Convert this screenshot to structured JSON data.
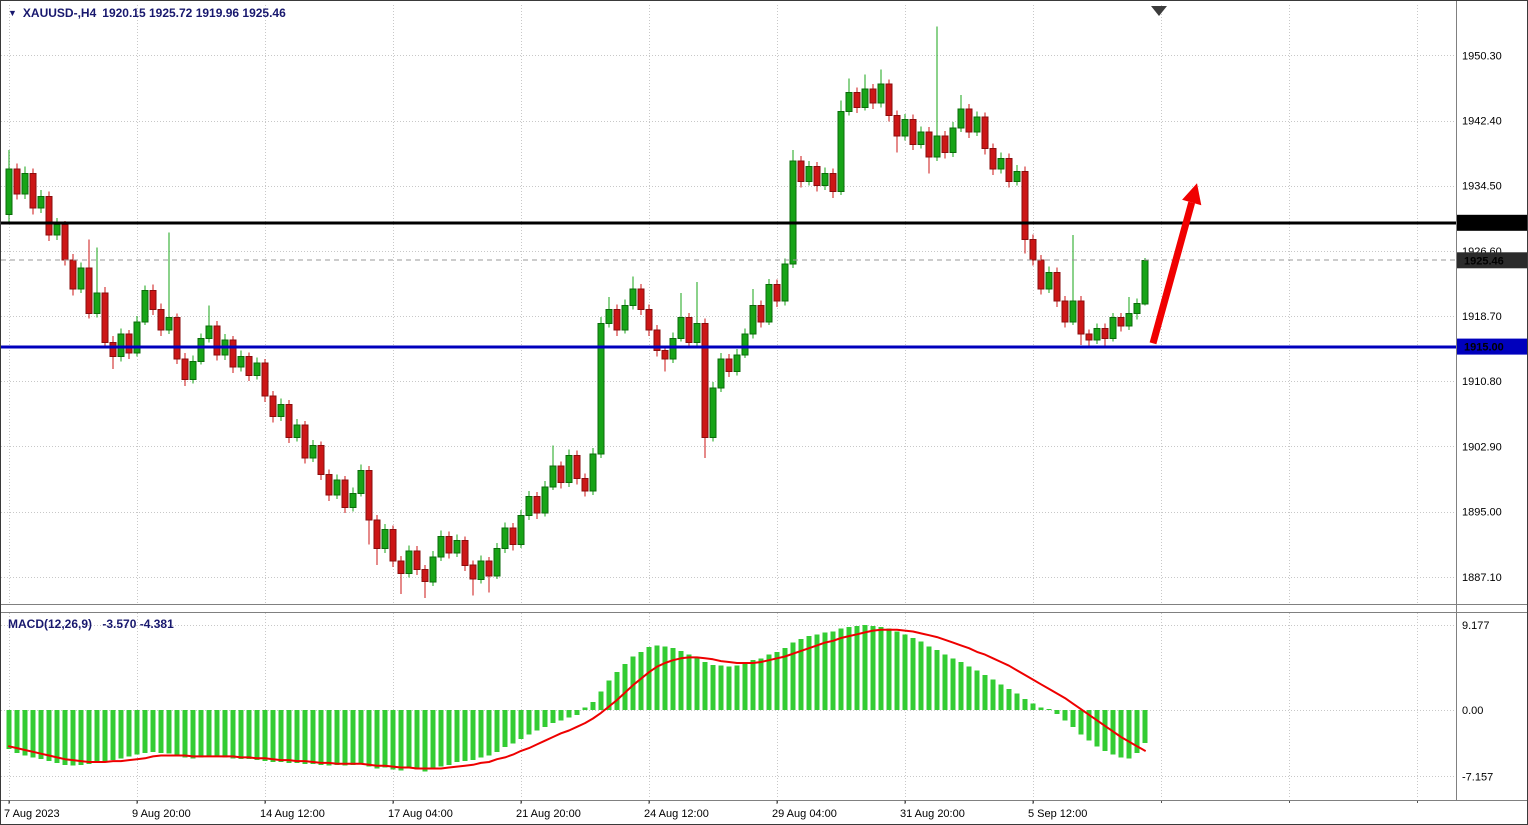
{
  "window": {
    "marker_glyph": "▼",
    "symbol_period": "XAUUSD-,H4",
    "ohlc_text": "1920.15 1925.72 1919.96 1925.46"
  },
  "chart_data": {
    "type": "candlestick",
    "symbol": "XAUUSD-",
    "timeframe": "H4",
    "current_bar": {
      "open": 1920.15,
      "high": 1925.72,
      "low": 1919.96,
      "close": 1925.46
    },
    "colors": {
      "bg": "#ffffff",
      "grid": "#c8c8c8",
      "up": "#17a417",
      "up_border": "#0b6b0b",
      "down": "#cc1616",
      "down_border": "#8a0d0d",
      "macd_hist": "#33cc33",
      "macd_signal": "#ee0000",
      "level_black": "#000000",
      "level_blue": "#0000bd",
      "arrow": "#f00000"
    },
    "price_axis": {
      "side": "right",
      "min": 1883.8,
      "max": 1956.4,
      "ticks": [
        {
          "value": 1950.3,
          "text": "1950.30"
        },
        {
          "value": 1942.4,
          "text": "1942.40"
        },
        {
          "value": 1934.5,
          "text": "1934.50"
        },
        {
          "value": 1926.6,
          "text": "1926.60"
        },
        {
          "value": 1918.7,
          "text": "1918.70"
        },
        {
          "value": 1910.8,
          "text": "1910.80"
        },
        {
          "value": 1902.9,
          "text": "1902.90"
        },
        {
          "value": 1895.0,
          "text": "1895.00"
        },
        {
          "value": 1887.1,
          "text": "1887.10"
        }
      ]
    },
    "levels": [
      {
        "value": 1930.0,
        "text": "1930.00",
        "line_color": "#000000",
        "badge_bg": "#000000",
        "line_width": 3,
        "dashed": false
      },
      {
        "value": 1915.0,
        "text": "1915.00",
        "line_color": "#0000bd",
        "badge_bg": "#0000bd",
        "line_width": 3,
        "dashed": false
      },
      {
        "value": 1925.46,
        "text": "1925.46",
        "line_color": "#999999",
        "badge_bg": "#2b2b2b",
        "line_width": 1,
        "dashed": true
      }
    ],
    "time_axis": {
      "grid_step": 16,
      "labels": [
        {
          "index": 0,
          "text": "7 Aug 2023"
        },
        {
          "index": 16,
          "text": "9 Aug 20:00"
        },
        {
          "index": 32,
          "text": "14 Aug 12:00"
        },
        {
          "index": 48,
          "text": "17 Aug 04:00"
        },
        {
          "index": 64,
          "text": "21 Aug 20:00"
        },
        {
          "index": 80,
          "text": "24 Aug 12:00"
        },
        {
          "index": 96,
          "text": "29 Aug 04:00"
        },
        {
          "index": 112,
          "text": "31 Aug 20:00"
        },
        {
          "index": 128,
          "text": "5 Sep 12:00"
        }
      ]
    },
    "candles": [
      [
        1931.0,
        1938.8,
        1930.0,
        1936.5
      ],
      [
        1936.5,
        1937.2,
        1932.8,
        1933.5
      ],
      [
        1933.5,
        1936.8,
        1932.9,
        1936.0
      ],
      [
        1936.0,
        1936.6,
        1931.0,
        1931.8
      ],
      [
        1931.8,
        1934.0,
        1931.2,
        1933.2
      ],
      [
        1933.2,
        1933.8,
        1927.8,
        1928.5
      ],
      [
        1928.5,
        1930.6,
        1927.9,
        1929.8
      ],
      [
        1929.8,
        1930.2,
        1924.8,
        1925.5
      ],
      [
        1925.5,
        1926.2,
        1921.2,
        1922.0
      ],
      [
        1922.0,
        1925.2,
        1921.5,
        1924.5
      ],
      [
        1924.5,
        1928.0,
        1918.4,
        1919.0
      ],
      [
        1919.0,
        1927.0,
        1918.5,
        1921.5
      ],
      [
        1921.5,
        1922.2,
        1914.8,
        1915.5
      ],
      [
        1915.5,
        1916.3,
        1912.3,
        1913.8
      ],
      [
        1913.8,
        1917.2,
        1913.2,
        1916.5
      ],
      [
        1916.5,
        1917.0,
        1913.5,
        1914.2
      ],
      [
        1914.2,
        1918.7,
        1913.8,
        1918.0
      ],
      [
        1918.0,
        1922.4,
        1917.6,
        1921.8
      ],
      [
        1921.8,
        1922.5,
        1918.8,
        1919.5
      ],
      [
        1919.5,
        1920.2,
        1916.3,
        1917.0
      ],
      [
        1917.0,
        1928.8,
        1916.5,
        1918.5
      ],
      [
        1918.5,
        1919.0,
        1912.9,
        1913.5
      ],
      [
        1913.5,
        1914.2,
        1910.2,
        1911.0
      ],
      [
        1911.0,
        1913.9,
        1910.5,
        1913.2
      ],
      [
        1913.2,
        1916.6,
        1912.8,
        1916.0
      ],
      [
        1916.0,
        1920.0,
        1915.5,
        1917.5
      ],
      [
        1917.5,
        1918.1,
        1913.3,
        1914.0
      ],
      [
        1914.0,
        1916.5,
        1913.4,
        1915.8
      ],
      [
        1915.8,
        1916.3,
        1911.8,
        1912.5
      ],
      [
        1912.5,
        1914.5,
        1912.0,
        1913.8
      ],
      [
        1913.8,
        1914.3,
        1910.8,
        1911.5
      ],
      [
        1911.5,
        1913.7,
        1911.0,
        1913.0
      ],
      [
        1913.0,
        1913.5,
        1908.3,
        1909.0
      ],
      [
        1909.0,
        1909.6,
        1905.8,
        1906.5
      ],
      [
        1906.5,
        1908.7,
        1906.0,
        1908.0
      ],
      [
        1908.0,
        1908.5,
        1903.3,
        1904.0
      ],
      [
        1904.0,
        1906.2,
        1903.5,
        1905.5
      ],
      [
        1905.5,
        1906.0,
        1900.8,
        1901.5
      ],
      [
        1901.5,
        1903.7,
        1901.0,
        1903.0
      ],
      [
        1903.0,
        1903.5,
        1898.8,
        1899.5
      ],
      [
        1899.5,
        1900.1,
        1896.3,
        1897.0
      ],
      [
        1897.0,
        1899.5,
        1896.5,
        1898.8
      ],
      [
        1898.8,
        1899.3,
        1894.8,
        1895.5
      ],
      [
        1895.5,
        1897.9,
        1895.0,
        1897.2
      ],
      [
        1897.2,
        1900.7,
        1896.8,
        1900.0
      ],
      [
        1900.0,
        1900.5,
        1891.0,
        1894.0
      ],
      [
        1894.0,
        1894.6,
        1888.5,
        1890.5
      ],
      [
        1890.5,
        1893.5,
        1890.0,
        1892.8
      ],
      [
        1892.8,
        1893.3,
        1888.3,
        1889.0
      ],
      [
        1889.0,
        1889.6,
        1885.0,
        1887.5
      ],
      [
        1887.5,
        1890.9,
        1887.0,
        1890.2
      ],
      [
        1890.2,
        1890.8,
        1887.3,
        1888.0
      ],
      [
        1888.0,
        1888.5,
        1884.5,
        1886.5
      ],
      [
        1886.5,
        1890.2,
        1886.0,
        1889.5
      ],
      [
        1889.5,
        1892.7,
        1889.0,
        1892.0
      ],
      [
        1892.0,
        1892.6,
        1889.3,
        1890.0
      ],
      [
        1890.0,
        1892.2,
        1889.5,
        1891.5
      ],
      [
        1891.5,
        1892.0,
        1887.8,
        1888.5
      ],
      [
        1888.5,
        1889.1,
        1884.8,
        1886.8
      ],
      [
        1886.8,
        1889.7,
        1886.3,
        1889.0
      ],
      [
        1889.0,
        1889.5,
        1885.2,
        1887.2
      ],
      [
        1887.2,
        1891.2,
        1886.8,
        1890.5
      ],
      [
        1890.5,
        1893.7,
        1890.0,
        1893.0
      ],
      [
        1893.0,
        1893.6,
        1890.3,
        1891.0
      ],
      [
        1891.0,
        1895.2,
        1890.6,
        1894.5
      ],
      [
        1894.5,
        1897.5,
        1894.0,
        1896.8
      ],
      [
        1896.8,
        1897.4,
        1894.1,
        1894.8
      ],
      [
        1894.8,
        1898.7,
        1894.4,
        1898.0
      ],
      [
        1898.0,
        1903.0,
        1897.6,
        1900.5
      ],
      [
        1900.5,
        1901.1,
        1897.8,
        1898.5
      ],
      [
        1898.5,
        1902.5,
        1898.0,
        1901.8
      ],
      [
        1901.8,
        1902.4,
        1898.3,
        1899.0
      ],
      [
        1899.0,
        1899.6,
        1896.8,
        1897.5
      ],
      [
        1897.5,
        1902.7,
        1897.0,
        1902.0
      ],
      [
        1902.0,
        1918.6,
        1901.5,
        1917.8
      ],
      [
        1917.8,
        1921.0,
        1917.3,
        1919.5
      ],
      [
        1919.5,
        1920.1,
        1916.3,
        1917.0
      ],
      [
        1917.0,
        1920.7,
        1916.6,
        1920.0
      ],
      [
        1920.0,
        1923.5,
        1919.5,
        1922.0
      ],
      [
        1922.0,
        1922.6,
        1918.8,
        1919.5
      ],
      [
        1919.5,
        1920.1,
        1916.3,
        1917.0
      ],
      [
        1917.0,
        1917.6,
        1913.8,
        1914.5
      ],
      [
        1914.5,
        1915.1,
        1912.0,
        1913.5
      ],
      [
        1913.5,
        1916.7,
        1913.0,
        1916.0
      ],
      [
        1916.0,
        1921.5,
        1915.6,
        1918.5
      ],
      [
        1918.5,
        1919.1,
        1914.8,
        1915.5
      ],
      [
        1915.5,
        1922.8,
        1915.0,
        1917.8
      ],
      [
        1917.8,
        1918.4,
        1901.5,
        1904.0
      ],
      [
        1904.0,
        1910.7,
        1903.5,
        1910.0
      ],
      [
        1910.0,
        1914.2,
        1909.5,
        1913.5
      ],
      [
        1913.5,
        1914.1,
        1911.3,
        1912.0
      ],
      [
        1912.0,
        1914.7,
        1911.5,
        1914.0
      ],
      [
        1914.0,
        1917.2,
        1913.6,
        1916.5
      ],
      [
        1916.5,
        1922.0,
        1916.0,
        1920.0
      ],
      [
        1920.0,
        1920.6,
        1917.3,
        1918.0
      ],
      [
        1918.0,
        1923.2,
        1917.6,
        1922.5
      ],
      [
        1922.5,
        1923.1,
        1919.8,
        1920.5
      ],
      [
        1920.5,
        1925.7,
        1920.0,
        1925.0
      ],
      [
        1925.0,
        1938.8,
        1924.5,
        1937.5
      ],
      [
        1937.5,
        1938.1,
        1934.3,
        1935.0
      ],
      [
        1935.0,
        1937.5,
        1934.5,
        1936.8
      ],
      [
        1936.8,
        1937.4,
        1933.8,
        1934.5
      ],
      [
        1934.5,
        1936.7,
        1934.0,
        1936.0
      ],
      [
        1936.0,
        1936.6,
        1933.0,
        1933.8
      ],
      [
        1933.8,
        1944.8,
        1933.4,
        1943.5
      ],
      [
        1943.5,
        1947.5,
        1943.0,
        1945.8
      ],
      [
        1945.8,
        1946.4,
        1943.3,
        1944.0
      ],
      [
        1944.0,
        1948.0,
        1943.6,
        1946.2
      ],
      [
        1946.2,
        1946.8,
        1943.8,
        1944.5
      ],
      [
        1944.5,
        1948.6,
        1944.0,
        1946.8
      ],
      [
        1946.8,
        1947.4,
        1942.3,
        1943.0
      ],
      [
        1943.0,
        1943.6,
        1938.5,
        1940.5
      ],
      [
        1940.5,
        1943.2,
        1940.0,
        1942.5
      ],
      [
        1942.5,
        1943.1,
        1938.8,
        1939.5
      ],
      [
        1939.5,
        1941.7,
        1939.0,
        1941.0
      ],
      [
        1941.0,
        1941.6,
        1936.0,
        1938.0
      ],
      [
        1938.0,
        1953.8,
        1937.5,
        1940.5
      ],
      [
        1940.5,
        1941.1,
        1937.8,
        1938.5
      ],
      [
        1938.5,
        1942.2,
        1938.0,
        1941.5
      ],
      [
        1941.5,
        1945.5,
        1941.0,
        1943.8
      ],
      [
        1943.8,
        1944.4,
        1940.3,
        1941.0
      ],
      [
        1941.0,
        1943.5,
        1940.5,
        1942.8
      ],
      [
        1942.8,
        1943.4,
        1938.3,
        1939.0
      ],
      [
        1939.0,
        1939.6,
        1935.8,
        1936.5
      ],
      [
        1936.5,
        1938.5,
        1936.0,
        1937.8
      ],
      [
        1937.8,
        1938.4,
        1934.3,
        1935.0
      ],
      [
        1935.0,
        1937.0,
        1934.5,
        1936.2
      ],
      [
        1936.2,
        1936.8,
        1926.3,
        1928.0
      ],
      [
        1928.0,
        1928.6,
        1924.8,
        1925.5
      ],
      [
        1925.5,
        1926.1,
        1921.3,
        1922.0
      ],
      [
        1922.0,
        1924.7,
        1921.5,
        1924.0
      ],
      [
        1924.0,
        1924.6,
        1919.8,
        1920.5
      ],
      [
        1920.5,
        1921.1,
        1917.3,
        1918.0
      ],
      [
        1918.0,
        1928.5,
        1917.6,
        1920.5
      ],
      [
        1920.5,
        1921.1,
        1915.2,
        1916.5
      ],
      [
        1916.5,
        1917.1,
        1914.8,
        1915.8
      ],
      [
        1915.8,
        1917.8,
        1915.3,
        1917.2
      ],
      [
        1917.2,
        1917.8,
        1914.9,
        1916.0
      ],
      [
        1916.0,
        1919.1,
        1915.6,
        1918.5
      ],
      [
        1918.5,
        1919.1,
        1916.8,
        1917.5
      ],
      [
        1917.5,
        1921.0,
        1917.0,
        1919.0
      ],
      [
        1919.0,
        1920.8,
        1918.3,
        1920.2
      ],
      [
        1920.15,
        1925.72,
        1919.96,
        1925.46
      ]
    ],
    "macd": {
      "name": "MACD(12,26,9)",
      "values_text": "-3.570 -4.381",
      "axis_max": 10.5,
      "axis_min": -9.6,
      "ticks": [
        {
          "value": 9.177,
          "text": "9.177"
        },
        {
          "value": 0,
          "text": "0.00"
        },
        {
          "value": -7.157,
          "text": "-7.157"
        }
      ],
      "histogram": [
        -4.2,
        -4.6,
        -4.9,
        -5.1,
        -5.3,
        -5.5,
        -5.7,
        -5.9,
        -6.0,
        -5.9,
        -5.8,
        -5.6,
        -5.5,
        -5.4,
        -5.2,
        -5.0,
        -4.8,
        -4.6,
        -4.5,
        -4.6,
        -4.7,
        -4.9,
        -5.1,
        -5.2,
        -5.1,
        -5.0,
        -5.0,
        -5.1,
        -5.2,
        -5.3,
        -5.3,
        -5.4,
        -5.5,
        -5.6,
        -5.6,
        -5.7,
        -5.7,
        -5.8,
        -5.8,
        -5.9,
        -6.0,
        -5.9,
        -6.0,
        -5.9,
        -5.8,
        -6.1,
        -6.3,
        -6.2,
        -6.4,
        -6.5,
        -6.3,
        -6.4,
        -6.6,
        -6.4,
        -6.1,
        -5.9,
        -5.6,
        -5.5,
        -5.4,
        -5.1,
        -4.9,
        -4.5,
        -4.0,
        -3.6,
        -3.1,
        -2.6,
        -2.2,
        -1.8,
        -1.4,
        -1.1,
        -0.8,
        -0.5,
        0.3,
        0.9,
        2.0,
        3.2,
        4.1,
        5.0,
        5.8,
        6.3,
        6.8,
        7.0,
        6.9,
        6.7,
        6.4,
        6.0,
        5.7,
        5.2,
        4.9,
        4.8,
        4.7,
        4.8,
        5.0,
        5.4,
        5.6,
        6.0,
        6.3,
        6.7,
        7.3,
        7.7,
        8.0,
        8.2,
        8.4,
        8.5,
        8.8,
        9.0,
        9.1,
        9.2,
        9.1,
        9.0,
        8.8,
        8.5,
        8.2,
        7.8,
        7.4,
        6.9,
        6.5,
        6.0,
        5.6,
        5.2,
        4.7,
        4.3,
        3.8,
        3.3,
        2.8,
        2.3,
        1.8,
        1.2,
        0.7,
        0.3,
        0.1,
        -0.4,
        -1.1,
        -1.8,
        -2.6,
        -3.3,
        -3.9,
        -4.4,
        -4.8,
        -5.1,
        -5.2,
        -4.6,
        -3.57
      ],
      "signal": [
        -3.9,
        -4.1,
        -4.3,
        -4.5,
        -4.7,
        -4.9,
        -5.1,
        -5.3,
        -5.4,
        -5.5,
        -5.6,
        -5.6,
        -5.6,
        -5.5,
        -5.5,
        -5.4,
        -5.3,
        -5.2,
        -5.0,
        -4.9,
        -4.9,
        -4.9,
        -4.9,
        -5.0,
        -5.0,
        -5.0,
        -5.0,
        -5.0,
        -5.0,
        -5.1,
        -5.1,
        -5.2,
        -5.2,
        -5.3,
        -5.4,
        -5.4,
        -5.5,
        -5.5,
        -5.6,
        -5.7,
        -5.7,
        -5.8,
        -5.8,
        -5.8,
        -5.8,
        -5.9,
        -6.0,
        -6.0,
        -6.1,
        -6.2,
        -6.2,
        -6.3,
        -6.3,
        -6.3,
        -6.3,
        -6.2,
        -6.1,
        -6.0,
        -5.9,
        -5.7,
        -5.6,
        -5.3,
        -5.1,
        -4.8,
        -4.4,
        -4.1,
        -3.7,
        -3.3,
        -2.9,
        -2.5,
        -2.2,
        -1.8,
        -1.4,
        -0.9,
        -0.3,
        0.4,
        1.1,
        1.9,
        2.7,
        3.4,
        4.1,
        4.7,
        5.1,
        5.4,
        5.6,
        5.7,
        5.7,
        5.6,
        5.5,
        5.3,
        5.2,
        5.1,
        5.1,
        5.1,
        5.2,
        5.4,
        5.6,
        5.8,
        6.1,
        6.4,
        6.7,
        7.0,
        7.3,
        7.5,
        7.8,
        8.0,
        8.2,
        8.4,
        8.6,
        8.7,
        8.7,
        8.7,
        8.6,
        8.5,
        8.3,
        8.1,
        7.9,
        7.6,
        7.3,
        7.0,
        6.7,
        6.3,
        6.0,
        5.6,
        5.2,
        4.8,
        4.3,
        3.8,
        3.3,
        2.8,
        2.3,
        1.8,
        1.3,
        0.7,
        0.1,
        -0.5,
        -1.1,
        -1.7,
        -2.3,
        -2.9,
        -3.4,
        -3.9,
        -4.381
      ]
    },
    "arrow": {
      "from_index": 143,
      "from_price": 1915.4,
      "to_index": 148.5,
      "to_price": 1934.8,
      "color": "#f00000",
      "width": 7
    }
  }
}
